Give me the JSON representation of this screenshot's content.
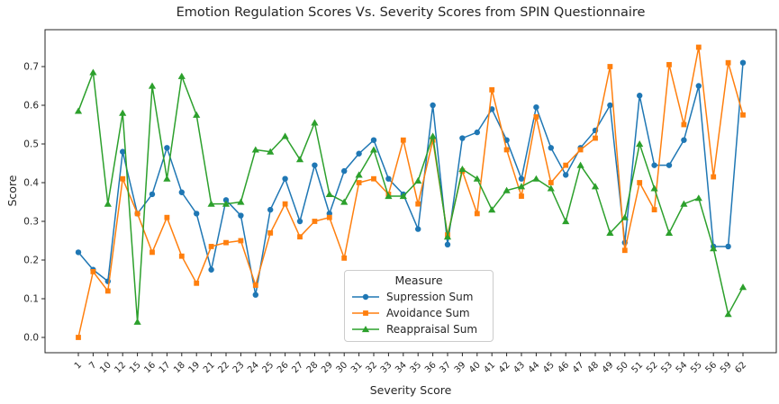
{
  "title": "Emotion Regulation Scores Vs. Severity Scores from SPIN Questionnaire",
  "legend": {
    "title": "Measure"
  },
  "chart_data": {
    "type": "line",
    "title": "Emotion Regulation Scores Vs. Severity Scores from SPIN Questionnaire",
    "xlabel": "Severity Score",
    "ylabel": "Score",
    "grid": false,
    "legend_position": "center-bottom",
    "ylim": [
      -0.04,
      0.795
    ],
    "yticks": [
      "0.0",
      "0.1",
      "0.2",
      "0.3",
      "0.4",
      "0.5",
      "0.6",
      "0.7"
    ],
    "categories": [
      "1",
      "7",
      "10",
      "12",
      "15",
      "16",
      "17",
      "18",
      "19",
      "21",
      "22",
      "23",
      "24",
      "25",
      "26",
      "27",
      "28",
      "29",
      "30",
      "31",
      "32",
      "33",
      "34",
      "35",
      "36",
      "37",
      "39",
      "40",
      "41",
      "42",
      "43",
      "44",
      "45",
      "46",
      "47",
      "48",
      "49",
      "50",
      "51",
      "52",
      "53",
      "54",
      "55",
      "56",
      "59",
      "62"
    ],
    "series": [
      {
        "name": "Supression Sum",
        "color": "#1f77b4",
        "marker": "circle",
        "values": [
          0.22,
          0.175,
          0.145,
          0.48,
          0.32,
          0.37,
          0.49,
          0.375,
          0.32,
          0.175,
          0.355,
          0.315,
          0.11,
          0.33,
          0.41,
          0.3,
          0.445,
          0.32,
          0.43,
          0.475,
          0.51,
          0.41,
          0.37,
          0.28,
          0.6,
          0.24,
          0.515,
          0.53,
          0.59,
          0.51,
          0.41,
          0.595,
          0.49,
          0.42,
          0.49,
          0.535,
          0.6,
          0.245,
          0.625,
          0.445,
          0.445,
          0.51,
          0.65,
          0.235,
          0.235,
          0.71
        ]
      },
      {
        "name": "Avoidance Sum",
        "color": "#ff7f0e",
        "marker": "square",
        "values": [
          0.0,
          0.17,
          0.12,
          0.41,
          0.32,
          0.22,
          0.31,
          0.21,
          0.14,
          0.235,
          0.245,
          0.25,
          0.135,
          0.27,
          0.345,
          0.26,
          0.3,
          0.31,
          0.205,
          0.4,
          0.41,
          0.37,
          0.51,
          0.345,
          0.51,
          0.265,
          0.43,
          0.32,
          0.64,
          0.485,
          0.365,
          0.57,
          0.4,
          0.445,
          0.485,
          0.515,
          0.7,
          0.225,
          0.4,
          0.33,
          0.705,
          0.55,
          0.75,
          0.415,
          0.71,
          0.575
        ]
      },
      {
        "name": "Reappraisal Sum",
        "color": "#2ca02c",
        "marker": "triangle",
        "values": [
          0.585,
          0.685,
          0.345,
          0.58,
          0.04,
          0.65,
          0.41,
          0.675,
          0.575,
          0.345,
          0.345,
          0.35,
          0.485,
          0.48,
          0.52,
          0.46,
          0.555,
          0.37,
          0.35,
          0.42,
          0.485,
          0.365,
          0.365,
          0.405,
          0.52,
          0.26,
          0.435,
          0.41,
          0.33,
          0.38,
          0.39,
          0.41,
          0.385,
          0.3,
          0.445,
          0.39,
          0.27,
          0.31,
          0.5,
          0.385,
          0.27,
          0.345,
          0.36,
          0.23,
          0.06,
          0.13
        ]
      }
    ]
  }
}
